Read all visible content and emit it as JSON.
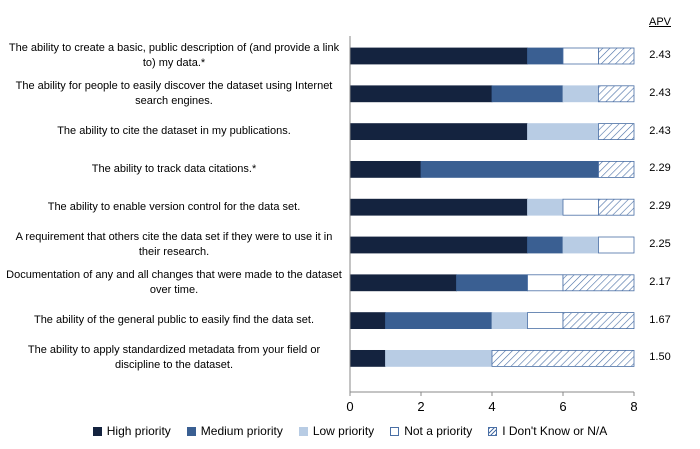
{
  "chart_data": {
    "type": "bar",
    "orientation": "horizontal",
    "stacked": true,
    "title": "",
    "xlabel": "",
    "ylabel": "",
    "xlim": [
      0,
      8
    ],
    "x_ticks": [
      "0",
      "2",
      "4",
      "6",
      "8"
    ],
    "grid": false,
    "legend_position": "bottom",
    "apv_header": "APV",
    "categories": [
      "The ability to create a basic, public description of (and provide a link to) my data.*",
      "The ability for people to easily discover the dataset using Internet search engines.",
      "The ability to cite the dataset in my publications.",
      "The ability to track data citations.*",
      "The ability to enable version control for the data set.",
      "A requirement that others cite the data set if they were to use it in their research.",
      "Documentation of any and all changes that were made to the dataset over time.",
      "The ability of the general public to easily find the data set.",
      "The ability to apply standardized metadata from your field or discipline to the dataset."
    ],
    "apv": [
      "2.43",
      "2.43",
      "2.43",
      "2.29",
      "2.29",
      "2.25",
      "2.17",
      "1.67",
      "1.50"
    ],
    "series": [
      {
        "name": "High priority",
        "color": "#14233f",
        "pattern": "solid",
        "values": [
          5,
          4,
          5,
          2,
          5,
          5,
          3,
          1,
          1
        ]
      },
      {
        "name": "Medium priority",
        "color": "#3a5f92",
        "pattern": "solid",
        "values": [
          1,
          2,
          0,
          5,
          0,
          1,
          2,
          3,
          0
        ]
      },
      {
        "name": "Low priority",
        "color": "#b8cce4",
        "pattern": "solid",
        "values": [
          0,
          1,
          2,
          0,
          1,
          1,
          0,
          1,
          3
        ]
      },
      {
        "name": "Not a priority",
        "color": "#ffffff",
        "pattern": "solid",
        "values": [
          1,
          0,
          0,
          0,
          1,
          1,
          1,
          1,
          0
        ]
      },
      {
        "name": "I Don't Know or N/A",
        "color": "#ffffff",
        "pattern": "hatch",
        "values": [
          1,
          1,
          1,
          1,
          1,
          0,
          2,
          2,
          4
        ]
      }
    ]
  }
}
